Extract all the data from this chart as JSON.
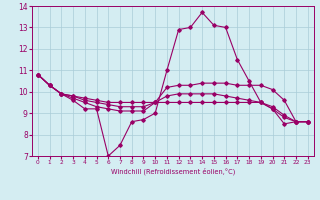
{
  "title": "",
  "xlabel": "Windchill (Refroidissement éolien,°C)",
  "ylabel": "",
  "bg_color": "#d4edf2",
  "line_color": "#990066",
  "grid_color": "#aacdd8",
  "xlim": [
    -0.5,
    23.5
  ],
  "ylim": [
    7,
    14
  ],
  "xticks": [
    0,
    1,
    2,
    3,
    4,
    5,
    6,
    7,
    8,
    9,
    10,
    11,
    12,
    13,
    14,
    15,
    16,
    17,
    18,
    19,
    20,
    21,
    22,
    23
  ],
  "yticks": [
    7,
    8,
    9,
    10,
    11,
    12,
    13,
    14
  ],
  "lines": [
    {
      "x": [
        0,
        1,
        2,
        3,
        4,
        5,
        6,
        7,
        8,
        9,
        10,
        11,
        12,
        13,
        14,
        15,
        16,
        17,
        18,
        19,
        20,
        21,
        22,
        23
      ],
      "y": [
        10.8,
        10.3,
        9.9,
        9.6,
        9.2,
        9.2,
        7.0,
        7.5,
        8.6,
        8.7,
        9.0,
        11.0,
        12.9,
        13.0,
        13.7,
        13.1,
        13.0,
        11.5,
        10.5,
        9.5,
        9.2,
        8.5,
        8.6,
        8.6
      ]
    },
    {
      "x": [
        0,
        1,
        2,
        3,
        4,
        5,
        6,
        7,
        8,
        9,
        10,
        11,
        12,
        13,
        14,
        15,
        16,
        17,
        18,
        19,
        20,
        21,
        22,
        23
      ],
      "y": [
        10.8,
        10.3,
        9.9,
        9.7,
        9.5,
        9.3,
        9.2,
        9.1,
        9.1,
        9.1,
        9.5,
        10.2,
        10.3,
        10.3,
        10.4,
        10.4,
        10.4,
        10.3,
        10.3,
        10.3,
        10.1,
        9.6,
        8.6,
        8.6
      ]
    },
    {
      "x": [
        0,
        1,
        2,
        3,
        4,
        5,
        6,
        7,
        8,
        9,
        10,
        11,
        12,
        13,
        14,
        15,
        16,
        17,
        18,
        19,
        20,
        21,
        22,
        23
      ],
      "y": [
        10.8,
        10.3,
        9.9,
        9.8,
        9.6,
        9.5,
        9.4,
        9.3,
        9.3,
        9.3,
        9.5,
        9.8,
        9.9,
        9.9,
        9.9,
        9.9,
        9.8,
        9.7,
        9.6,
        9.5,
        9.3,
        8.9,
        8.6,
        8.6
      ]
    },
    {
      "x": [
        0,
        1,
        2,
        3,
        4,
        5,
        6,
        7,
        8,
        9,
        10,
        11,
        12,
        13,
        14,
        15,
        16,
        17,
        18,
        19,
        20,
        21,
        22,
        23
      ],
      "y": [
        10.8,
        10.3,
        9.9,
        9.8,
        9.7,
        9.6,
        9.5,
        9.5,
        9.5,
        9.5,
        9.5,
        9.5,
        9.5,
        9.5,
        9.5,
        9.5,
        9.5,
        9.5,
        9.5,
        9.5,
        9.2,
        8.8,
        8.6,
        8.6
      ]
    }
  ]
}
